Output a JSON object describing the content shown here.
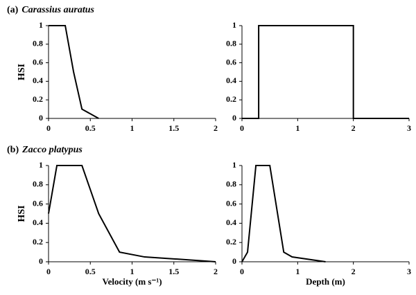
{
  "chart_data": [
    {
      "type": "line",
      "label": "(a)",
      "title": "Carassius auratus",
      "ylabel": "HSI",
      "x": [
        0,
        0.2,
        0.3,
        0.4,
        0.6
      ],
      "values": [
        1,
        1,
        0.5,
        0.1,
        0
      ],
      "color": "#000000",
      "xlim": [
        0,
        2
      ],
      "xticks": [
        0,
        0.5,
        1,
        1.5,
        2
      ],
      "ylim": [
        0,
        1
      ],
      "yticks": [
        0,
        0.2,
        0.4,
        0.6,
        0.8,
        1
      ]
    },
    {
      "type": "line",
      "x": [
        0,
        0.3,
        0.3,
        2,
        2,
        3
      ],
      "values": [
        0,
        0,
        1,
        1,
        0,
        0
      ],
      "color": "#000000",
      "xlim": [
        0,
        3
      ],
      "xticks": [
        0,
        1,
        2,
        3
      ],
      "ylim": [
        0,
        1
      ],
      "yticks": [
        0,
        0.2,
        0.4,
        0.6,
        0.8,
        1
      ]
    },
    {
      "type": "line",
      "label": "(b)",
      "title": "Zacco platypus",
      "ylabel": "HSI",
      "xlabel": "Velocity (m s⁻¹)",
      "x": [
        0,
        0.1,
        0.4,
        0.6,
        0.85,
        1.15,
        1.5,
        2
      ],
      "values": [
        0.5,
        1,
        1,
        0.5,
        0.1,
        0.05,
        0.03,
        0
      ],
      "color": "#000000",
      "xlim": [
        0,
        2
      ],
      "xticks": [
        0,
        0.5,
        1,
        1.5,
        2
      ],
      "ylim": [
        0,
        1
      ],
      "yticks": [
        0,
        0.2,
        0.4,
        0.6,
        0.8,
        1
      ]
    },
    {
      "type": "line",
      "xlabel": "Depth (m)",
      "x": [
        0,
        0.1,
        0.25,
        0.5,
        0.75,
        0.9,
        1.5
      ],
      "values": [
        0,
        0.1,
        1,
        1,
        0.1,
        0.05,
        0
      ],
      "color": "#000000",
      "xlim": [
        0,
        3
      ],
      "xticks": [
        0,
        1,
        2,
        3
      ],
      "ylim": [
        0,
        1
      ],
      "yticks": [
        0,
        0.2,
        0.4,
        0.6,
        0.8,
        1
      ]
    }
  ]
}
